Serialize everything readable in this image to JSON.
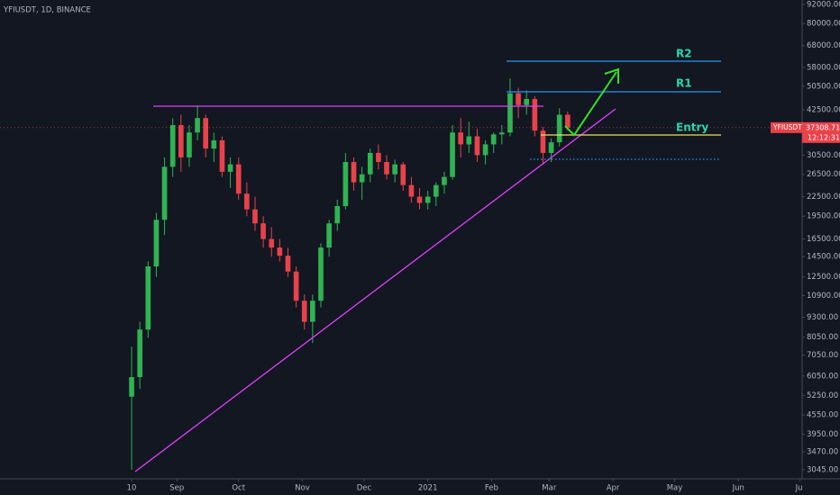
{
  "chart_data": {
    "type": "candlestick",
    "title": "YFIUSDT, 1D, BINANCE",
    "symbol": "YFIUSDT",
    "last_price": 37308.71,
    "countdown": "12:12:31",
    "annotations": [
      "R2",
      "R1",
      "Entry"
    ],
    "up_color": "#30b352",
    "down_color": "#e8424a",
    "log_scale": true,
    "grid": false,
    "xlim": [
      "2020-06-07",
      "2021-07-02"
    ],
    "ylim": [
      2850,
      95000
    ],
    "xticks": [
      {
        "value": "2020-08-10",
        "label": "10"
      },
      {
        "value": "2020-09-01",
        "label": "Sep"
      },
      {
        "value": "2020-10-01",
        "label": "Oct"
      },
      {
        "value": "2020-11-01",
        "label": "Nov"
      },
      {
        "value": "2020-12-01",
        "label": "Dec"
      },
      {
        "value": "2021-01-01",
        "label": "2021"
      },
      {
        "value": "2021-02-01",
        "label": "Feb"
      },
      {
        "value": "2021-03-01",
        "label": "Mar"
      },
      {
        "value": "2021-04-01",
        "label": "Apr"
      },
      {
        "value": "2021-05-01",
        "label": "May"
      },
      {
        "value": "2021-06-01",
        "label": "Jun"
      },
      {
        "value": "2021-07-01",
        "label": "Jul"
      }
    ],
    "yticks": [
      {
        "value": 3045,
        "label": "3045.00"
      },
      {
        "value": 3470,
        "label": "3470.00"
      },
      {
        "value": 3950,
        "label": "3950.00"
      },
      {
        "value": 4550,
        "label": "4550.00"
      },
      {
        "value": 5250,
        "label": "5250.00"
      },
      {
        "value": 6050,
        "label": "6050.00"
      },
      {
        "value": 7050,
        "label": "7050.00"
      },
      {
        "value": 8050,
        "label": "8050.00"
      },
      {
        "value": 9300,
        "label": "9300.00"
      },
      {
        "value": 10900,
        "label": "10900.00"
      },
      {
        "value": 12500,
        "label": "12500.00"
      },
      {
        "value": 14500,
        "label": "14500.00"
      },
      {
        "value": 16500,
        "label": "16500.00"
      },
      {
        "value": 19500,
        "label": "19500.00"
      },
      {
        "value": 22500,
        "label": "22500.00"
      },
      {
        "value": 26500,
        "label": "26500.00"
      },
      {
        "value": 30500,
        "label": "30500.00"
      },
      {
        "value": 42500,
        "label": "42500.00"
      },
      {
        "value": 50500,
        "label": "50500.00"
      },
      {
        "value": 58000,
        "label": "58000.00"
      },
      {
        "value": 68000,
        "label": "68000.00"
      },
      {
        "value": 80000,
        "label": "80000.00"
      },
      {
        "value": 92000,
        "label": "92000.00"
      }
    ],
    "candles": {
      "x": [
        "2020-08-10",
        "2020-08-14",
        "2020-08-18",
        "2020-08-22",
        "2020-08-26",
        "2020-08-30",
        "2020-09-03",
        "2020-09-07",
        "2020-09-11",
        "2020-09-15",
        "2020-09-19",
        "2020-09-23",
        "2020-09-27",
        "2020-10-01",
        "2020-10-05",
        "2020-10-09",
        "2020-10-13",
        "2020-10-17",
        "2020-10-21",
        "2020-10-25",
        "2020-10-29",
        "2020-11-02",
        "2020-11-06",
        "2020-11-10",
        "2020-11-14",
        "2020-11-18",
        "2020-11-22",
        "2020-11-26",
        "2020-11-30",
        "2020-12-04",
        "2020-12-08",
        "2020-12-12",
        "2020-12-16",
        "2020-12-20",
        "2020-12-24",
        "2020-12-28",
        "2021-01-01",
        "2021-01-05",
        "2021-01-09",
        "2021-01-13",
        "2021-01-17",
        "2021-01-21",
        "2021-01-25",
        "2021-01-29",
        "2021-02-02",
        "2021-02-06",
        "2021-02-10",
        "2021-02-14",
        "2021-02-18",
        "2021-02-22",
        "2021-02-26",
        "2021-03-02",
        "2021-03-06",
        "2021-03-10"
      ],
      "open": [
        5200,
        6000,
        8500,
        13500,
        19000,
        28000,
        38000,
        30000,
        36000,
        40000,
        32000,
        34000,
        27000,
        28500,
        23000,
        20500,
        18500,
        16500,
        15500,
        14600,
        13000,
        10500,
        9000,
        10500,
        15500,
        18500,
        21000,
        29000,
        25000,
        26500,
        31000,
        29000,
        26500,
        28500,
        24500,
        22500,
        21500,
        22500,
        24500,
        26000,
        36000,
        33000,
        35000,
        30500,
        33000,
        35500,
        36000,
        48000,
        44000,
        46000,
        36500,
        31000,
        33500,
        41000
      ],
      "high": [
        7500,
        9000,
        14000,
        20000,
        30000,
        40000,
        41000,
        38000,
        43500,
        41000,
        36000,
        35000,
        30000,
        30000,
        25000,
        22500,
        19500,
        18000,
        16500,
        15500,
        13500,
        11000,
        11000,
        16000,
        19000,
        22000,
        31000,
        30000,
        28000,
        32000,
        33000,
        30500,
        29500,
        29000,
        26000,
        24000,
        23500,
        25000,
        27000,
        38000,
        40000,
        39000,
        37000,
        34000,
        36000,
        38000,
        53500,
        50000,
        49000,
        47000,
        37500,
        34500,
        43000,
        42000
      ],
      "low": [
        3045,
        5500,
        8000,
        12500,
        17000,
        26000,
        27000,
        28000,
        34000,
        30000,
        29000,
        26000,
        24000,
        22000,
        19500,
        17500,
        15500,
        14500,
        14000,
        12500,
        10000,
        8500,
        7700,
        10000,
        14500,
        17500,
        20500,
        23500,
        22000,
        25000,
        27500,
        25500,
        25000,
        23500,
        21500,
        20500,
        20500,
        21000,
        23000,
        25500,
        30000,
        31000,
        29000,
        28500,
        31000,
        33000,
        35000,
        40000,
        41000,
        35000,
        28500,
        29000,
        32500,
        36500
      ],
      "close": [
        6000,
        8500,
        13500,
        19000,
        28000,
        38000,
        30000,
        36000,
        40000,
        32000,
        34000,
        27000,
        28500,
        23000,
        20500,
        18500,
        16500,
        15500,
        14600,
        13000,
        10500,
        9000,
        10500,
        15500,
        18500,
        21000,
        29000,
        25000,
        26500,
        31000,
        29000,
        26500,
        28500,
        24500,
        22500,
        21500,
        22500,
        24500,
        26000,
        36000,
        33000,
        35000,
        30500,
        33000,
        35500,
        36000,
        48000,
        44000,
        46000,
        36500,
        31000,
        33500,
        41000,
        37308.71
      ]
    }
  }
}
